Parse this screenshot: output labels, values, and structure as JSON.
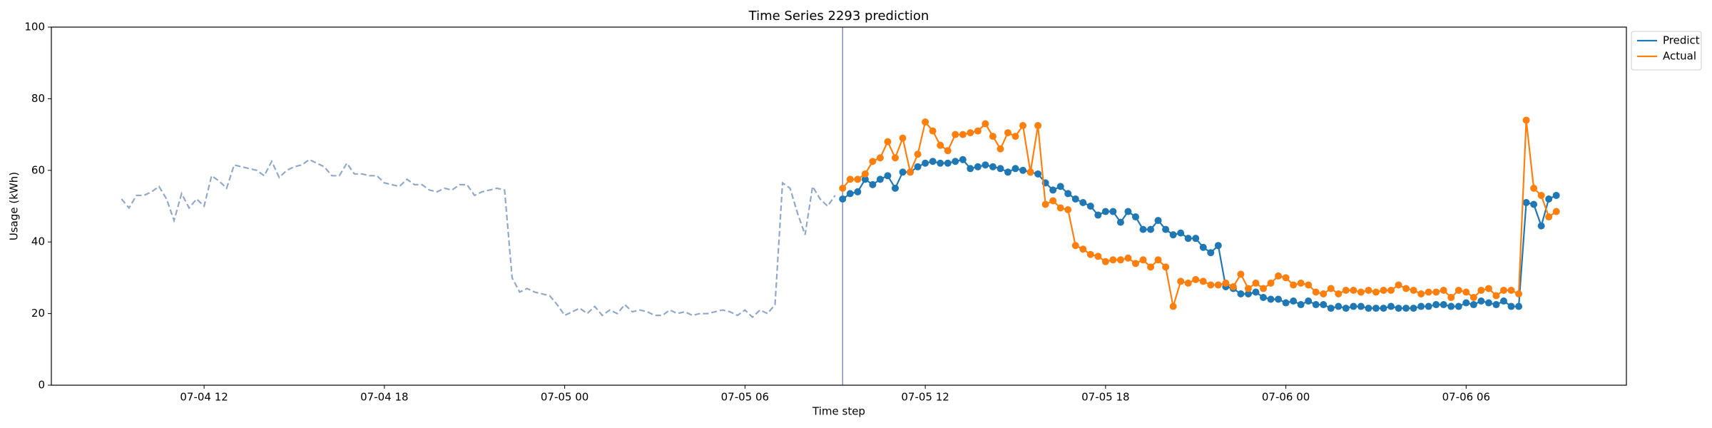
{
  "chart_data": {
    "type": "line",
    "title": "Time Series 2293 prediction",
    "xlabel": "Time step",
    "ylabel": "Usage (kWh)",
    "ylim": [
      0,
      100
    ],
    "yticks": [
      0,
      20,
      40,
      60,
      80,
      100
    ],
    "xlim": [
      "07-04 06:55",
      "07-06 11:20"
    ],
    "xticks": [
      {
        "value": "07-04 12:00",
        "label": "07-04 12"
      },
      {
        "value": "07-04 18:00",
        "label": "07-04 18"
      },
      {
        "value": "07-05 00:00",
        "label": "07-05 00"
      },
      {
        "value": "07-05 06:00",
        "label": "07-05 06"
      },
      {
        "value": "07-05 12:00",
        "label": "07-05 12"
      },
      {
        "value": "07-05 18:00",
        "label": "07-05 18"
      },
      {
        "value": "07-06 00:00",
        "label": "07-06 00"
      },
      {
        "value": "07-06 06:00",
        "label": "07-06 06"
      }
    ],
    "vline_x": "07-05 09:15",
    "vline_color": "#7f8fbf",
    "legend": "upper right outside",
    "x": [
      "07-05 09:15",
      "07-05 09:30",
      "07-05 09:45",
      "07-05 10:00",
      "07-05 10:15",
      "07-05 10:30",
      "07-05 10:45",
      "07-05 11:00",
      "07-05 11:15",
      "07-05 11:30",
      "07-05 11:45",
      "07-05 12:00",
      "07-05 12:15",
      "07-05 12:30",
      "07-05 12:45",
      "07-05 13:00",
      "07-05 13:15",
      "07-05 13:30",
      "07-05 13:45",
      "07-05 14:00",
      "07-05 14:15",
      "07-05 14:30",
      "07-05 14:45",
      "07-05 15:00",
      "07-05 15:15",
      "07-05 15:30",
      "07-05 15:45",
      "07-05 16:00",
      "07-05 16:15",
      "07-05 16:30",
      "07-05 16:45",
      "07-05 17:00",
      "07-05 17:15",
      "07-05 17:30",
      "07-05 17:45",
      "07-05 18:00",
      "07-05 18:15",
      "07-05 18:30",
      "07-05 18:45",
      "07-05 19:00",
      "07-05 19:15",
      "07-05 19:30",
      "07-05 19:45",
      "07-05 20:00",
      "07-05 20:15",
      "07-05 20:30",
      "07-05 20:45",
      "07-05 21:00",
      "07-05 21:15",
      "07-05 21:30",
      "07-05 21:45",
      "07-05 22:00",
      "07-05 22:15",
      "07-05 22:30",
      "07-05 22:45",
      "07-05 23:00",
      "07-05 23:15",
      "07-05 23:30",
      "07-05 23:45",
      "07-06 00:00",
      "07-06 00:15",
      "07-06 00:30",
      "07-06 00:45",
      "07-06 01:00",
      "07-06 01:15",
      "07-06 01:30",
      "07-06 01:45",
      "07-06 02:00",
      "07-06 02:15",
      "07-06 02:30",
      "07-06 02:45",
      "07-06 03:00",
      "07-06 03:15",
      "07-06 03:30",
      "07-06 03:45",
      "07-06 04:00",
      "07-06 04:15",
      "07-06 04:30",
      "07-06 04:45",
      "07-06 05:00",
      "07-06 05:15",
      "07-06 05:30",
      "07-06 05:45",
      "07-06 06:00",
      "07-06 06:15",
      "07-06 06:30",
      "07-06 06:45",
      "07-06 07:00",
      "07-06 07:15",
      "07-06 07:30",
      "07-06 07:45",
      "07-06 08:00",
      "07-06 08:15",
      "07-06 08:30",
      "07-06 08:45",
      "07-06 09:00"
    ],
    "series": [
      {
        "color": "#92a8c8",
        "style": "dashed",
        "x": [
          "07-04 09:15",
          "07-04 09:30",
          "07-04 09:45",
          "07-04 10:00",
          "07-04 10:15",
          "07-04 10:30",
          "07-04 10:45",
          "07-04 11:00",
          "07-04 11:15",
          "07-04 11:30",
          "07-04 11:45",
          "07-04 12:00",
          "07-04 12:15",
          "07-04 12:30",
          "07-04 12:45",
          "07-04 13:00",
          "07-04 13:15",
          "07-04 13:30",
          "07-04 13:45",
          "07-04 14:00",
          "07-04 14:15",
          "07-04 14:30",
          "07-04 14:45",
          "07-04 15:00",
          "07-04 15:15",
          "07-04 15:30",
          "07-04 15:45",
          "07-04 16:00",
          "07-04 16:15",
          "07-04 16:30",
          "07-04 16:45",
          "07-04 17:00",
          "07-04 17:15",
          "07-04 17:30",
          "07-04 17:45",
          "07-04 18:00",
          "07-04 18:15",
          "07-04 18:30",
          "07-04 18:45",
          "07-04 19:00",
          "07-04 19:15",
          "07-04 19:30",
          "07-04 19:45",
          "07-04 20:00",
          "07-04 20:15",
          "07-04 20:30",
          "07-04 20:45",
          "07-04 21:00",
          "07-04 21:15",
          "07-04 21:30",
          "07-04 21:45",
          "07-04 22:00",
          "07-04 22:15",
          "07-04 22:30",
          "07-04 22:45",
          "07-04 23:00",
          "07-04 23:15",
          "07-04 23:30",
          "07-04 23:45",
          "07-05 00:00",
          "07-05 00:15",
          "07-05 00:30",
          "07-05 00:45",
          "07-05 01:00",
          "07-05 01:15",
          "07-05 01:30",
          "07-05 01:45",
          "07-05 02:00",
          "07-05 02:15",
          "07-05 02:30",
          "07-05 02:45",
          "07-05 03:00",
          "07-05 03:15",
          "07-05 03:30",
          "07-05 03:45",
          "07-05 04:00",
          "07-05 04:15",
          "07-05 04:30",
          "07-05 04:45",
          "07-05 05:00",
          "07-05 05:15",
          "07-05 05:30",
          "07-05 05:45",
          "07-05 06:00",
          "07-05 06:15",
          "07-05 06:30",
          "07-05 06:45",
          "07-05 07:00",
          "07-05 07:15",
          "07-05 07:30",
          "07-05 07:45",
          "07-05 08:00",
          "07-05 08:15",
          "07-05 08:30",
          "07-05 08:45",
          "07-05 09:00"
        ],
        "values": [
          52,
          49.5,
          53,
          53,
          54,
          55.5,
          52,
          46,
          53.5,
          49.5,
          52,
          50,
          58.5,
          57,
          55,
          61.5,
          61,
          60.5,
          60,
          58.5,
          62.5,
          58,
          60,
          61,
          61.5,
          63,
          62,
          61,
          58.5,
          58.5,
          62,
          59,
          59,
          58.5,
          58.5,
          56.5,
          56,
          55.5,
          57.5,
          56,
          56,
          54.5,
          54,
          55,
          54.5,
          56,
          56,
          53,
          54,
          54.5,
          55,
          54.5,
          30,
          26,
          27,
          26,
          25.5,
          25,
          22.5,
          19.5,
          20.5,
          21.5,
          20,
          22,
          19.5,
          21,
          20,
          22.5,
          20.5,
          21,
          20.5,
          19.5,
          19.5,
          21,
          20,
          20.5,
          19.5,
          20,
          20,
          20.5,
          21,
          20.5,
          19.5,
          21,
          19,
          21,
          20,
          22.5,
          56.5,
          55,
          48,
          42,
          55.5,
          52,
          50,
          53
        ]
      },
      {
        "name": "Predict",
        "color": "#1f77b4",
        "markers": true,
        "values": [
          52,
          53.5,
          54,
          57.5,
          56,
          57.5,
          58.5,
          55,
          59.5,
          59.5,
          61,
          62,
          62.5,
          62,
          62,
          62.5,
          63,
          60.5,
          61,
          61.5,
          61,
          60.5,
          59.5,
          60.5,
          60,
          59.5,
          59,
          56.5,
          54.5,
          55.5,
          53.5,
          52,
          51,
          50,
          47.5,
          48.5,
          48.5,
          45.5,
          48.5,
          47,
          43.5,
          43.5,
          46,
          43.5,
          42,
          42.5,
          41,
          41,
          38.5,
          37,
          39,
          27.5,
          27,
          25.5,
          25.5,
          26,
          24.5,
          24,
          24,
          23,
          23.5,
          22.5,
          23.5,
          22.5,
          22.5,
          21.5,
          22,
          21.5,
          22,
          22,
          21.5,
          21.5,
          21.5,
          22,
          21.5,
          21.5,
          21.5,
          22,
          22,
          22.5,
          22.5,
          22,
          22,
          23,
          22.5,
          23.5,
          23,
          22.5,
          23.5,
          22,
          22,
          51,
          50.5,
          44.5,
          52,
          53
        ]
      },
      {
        "name": "Actual",
        "color": "#ff7f0e",
        "markers": true,
        "values": [
          55,
          57.5,
          57.5,
          59,
          62.5,
          63.5,
          68,
          63.5,
          69,
          59.5,
          64.5,
          73.5,
          71,
          67,
          65.5,
          70,
          70,
          70.5,
          71,
          73,
          69.5,
          66,
          70.5,
          69.5,
          72.5,
          59.5,
          72.5,
          50.5,
          51.5,
          49.5,
          49,
          39,
          38,
          36.5,
          36,
          34.5,
          35,
          35,
          35.5,
          34,
          35,
          33,
          35,
          33,
          22,
          29,
          28.5,
          29.5,
          29,
          28,
          28,
          28.5,
          27.5,
          31,
          27,
          28.5,
          27,
          28.5,
          30.5,
          30,
          28,
          28.5,
          28,
          26,
          25.5,
          27,
          25.5,
          26.5,
          26.5,
          26,
          26.5,
          26,
          26.5,
          26.5,
          28,
          27,
          26.5,
          25.5,
          26,
          26,
          26.5,
          24.5,
          26.5,
          26,
          24.5,
          26.5,
          27,
          25,
          26.5,
          26.5,
          25.5,
          74,
          55,
          53,
          47,
          48.5
        ]
      }
    ]
  }
}
